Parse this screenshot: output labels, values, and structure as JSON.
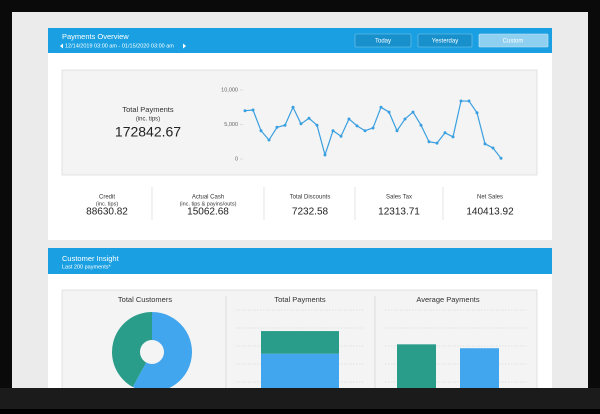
{
  "payments_overview": {
    "title": "Payments Overview",
    "date_range": "12/14/2019 03:00 am - 01/15/2020 03:00 am",
    "buttons": [
      "Today",
      "Yesterday",
      "Custom"
    ],
    "total_payments": {
      "label": "Total Payments",
      "sublabel": "(inc. tips)",
      "value": 172842.67
    },
    "chart_data": {
      "type": "line",
      "color": "#3a9fe0",
      "values": [
        7000,
        7100,
        4100,
        2750,
        4600,
        4900,
        7500,
        5100,
        5900,
        4900,
        600,
        4100,
        3300,
        5800,
        4800,
        4100,
        4500,
        7500,
        6800,
        4100,
        5800,
        6800,
        4900,
        2500,
        2300,
        3800,
        3200,
        8400,
        8400,
        6700,
        2200,
        1600,
        100
      ],
      "ylim": [
        0,
        10000
      ],
      "yticks": [
        {
          "value": 10000,
          "label": "10,000"
        },
        {
          "value": 5000,
          "label": "5,000"
        },
        0
      ]
    },
    "stats": [
      {
        "label": "Credit",
        "sublabel": "(inc. tips)",
        "value": 88630.82
      },
      {
        "label": "Actual Cash",
        "sublabel": "(inc. tips & payins/outs)",
        "value": 15062.68
      },
      {
        "label": "Total Discounts",
        "value": 7232.58
      },
      {
        "label": "Sales Tax",
        "value": 12313.71
      },
      {
        "label": "Net Sales",
        "value": 140413.92
      }
    ]
  },
  "customer_insight": {
    "title": "Customer Insight",
    "subtitle": "Last 200 payments*",
    "panels": [
      {
        "title": "Total Customers",
        "chart_data": {
          "type": "pie",
          "values": [
            58,
            42
          ],
          "colors": [
            "#42a6ee",
            "#2a9d8a"
          ]
        }
      },
      {
        "title": "Total Payments",
        "chart_data": {
          "type": "stacked",
          "ylim": [
            0,
            100
          ],
          "series": [
            {
              "color": "#42a6ee",
              "values": [
                44
              ]
            },
            {
              "color": "#2a9d8a",
              "values": [
                29
              ]
            }
          ]
        }
      },
      {
        "title": "Average Payments",
        "chart_data": {
          "type": "bar",
          "ylim": [
            0,
            100
          ],
          "values": [
            56,
            51
          ],
          "colors": [
            "#2a9d8a",
            "#42a6ee"
          ]
        }
      }
    ]
  }
}
